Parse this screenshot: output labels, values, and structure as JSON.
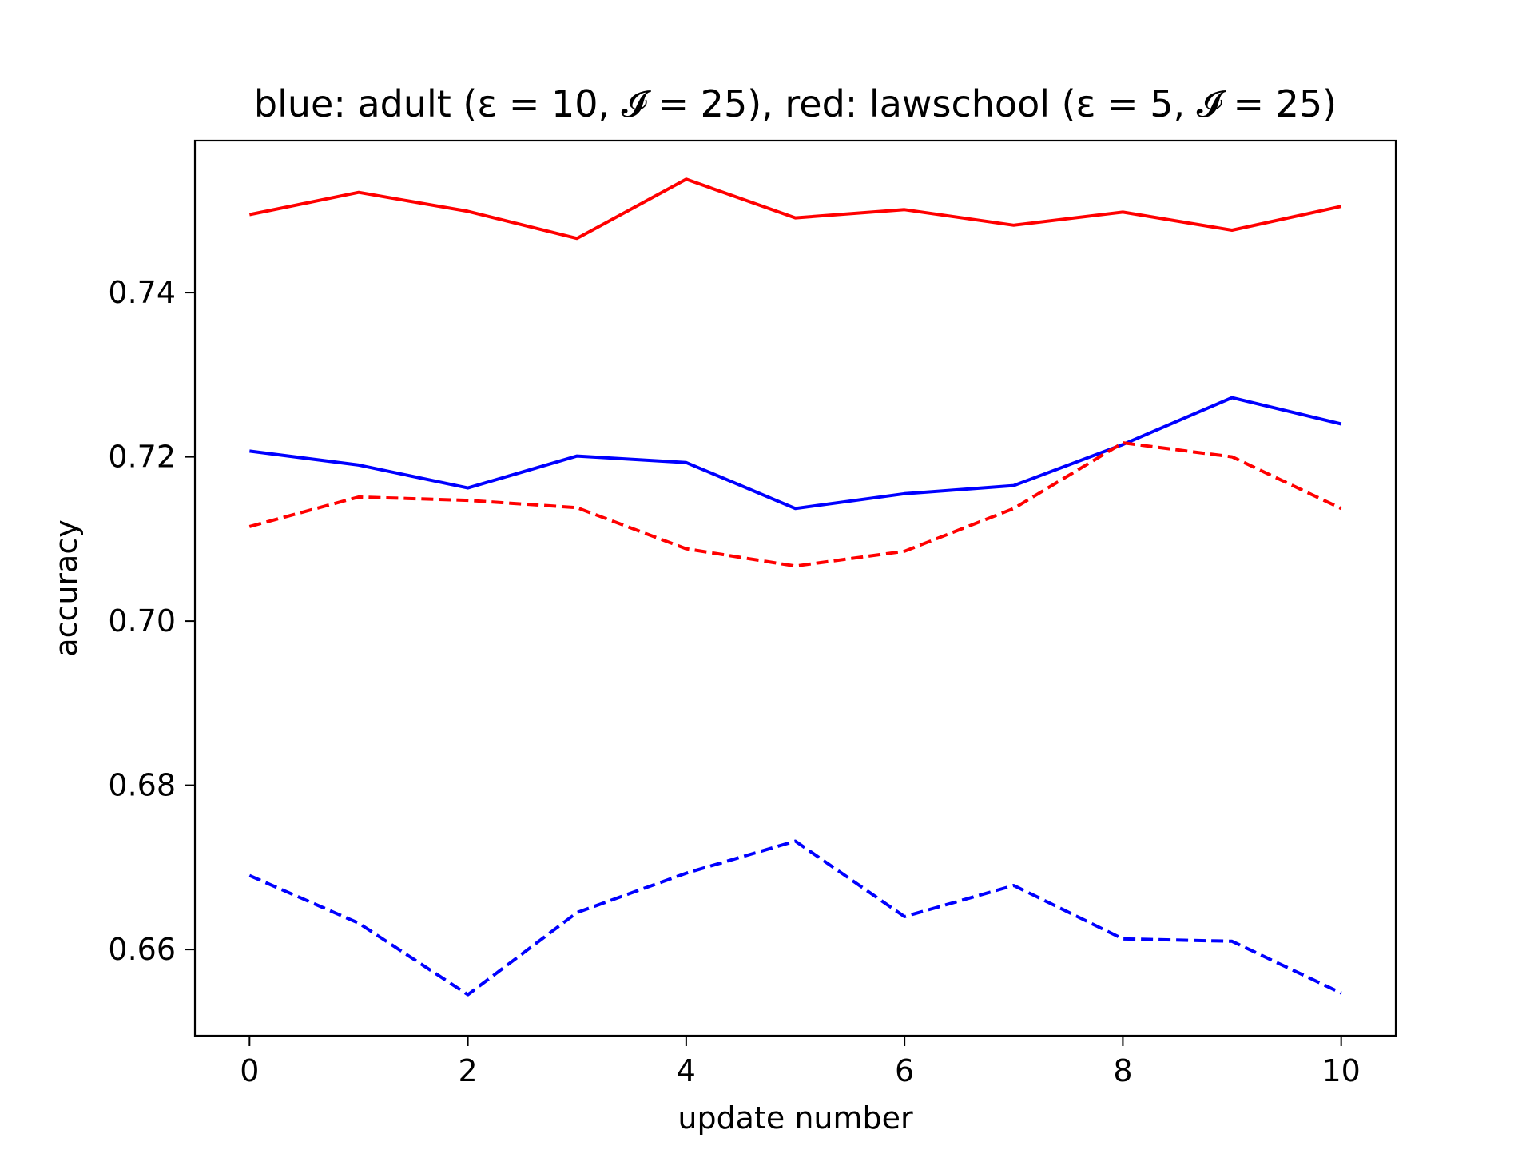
{
  "chart_data": {
    "type": "line",
    "title": "blue: adult (ε = 10, 𝓘 = 25), red: lawschool (ε = 5, 𝓘 = 25)",
    "xlabel": "update number",
    "ylabel": "accuracy",
    "xlim": [
      -0.5,
      10.5
    ],
    "ylim": [
      0.6495,
      0.7585
    ],
    "xticks": [
      0,
      2,
      4,
      6,
      8,
      10
    ],
    "xtick_labels": [
      "0",
      "2",
      "4",
      "6",
      "8",
      "10"
    ],
    "yticks": [
      0.66,
      0.68,
      0.7,
      0.72,
      0.74
    ],
    "ytick_labels": [
      "0.66",
      "0.68",
      "0.70",
      "0.72",
      "0.74"
    ],
    "grid": false,
    "legend": "none",
    "x": [
      0,
      1,
      2,
      3,
      4,
      5,
      6,
      7,
      8,
      9,
      10
    ],
    "series": [
      {
        "color": "#ff0000",
        "style": "solid",
        "values": [
          0.7495,
          0.7522,
          0.7499,
          0.7466,
          0.7538,
          0.7491,
          0.7501,
          0.7482,
          0.7498,
          0.7476,
          0.7505
        ]
      },
      {
        "color": "#0000ff",
        "style": "solid",
        "values": [
          0.7207,
          0.719,
          0.7162,
          0.7201,
          0.7193,
          0.7137,
          0.7155,
          0.7165,
          0.7215,
          0.7272,
          0.724
        ]
      },
      {
        "color": "#ff0000",
        "style": "dashed",
        "values": [
          0.7115,
          0.7151,
          0.7147,
          0.7138,
          0.7088,
          0.7067,
          0.7085,
          0.7137,
          0.7217,
          0.72,
          0.7137
        ]
      },
      {
        "color": "#0000ff",
        "style": "dashed",
        "values": [
          0.669,
          0.6632,
          0.6545,
          0.6645,
          0.6693,
          0.6732,
          0.664,
          0.6678,
          0.6613,
          0.661,
          0.6547
        ]
      }
    ]
  }
}
